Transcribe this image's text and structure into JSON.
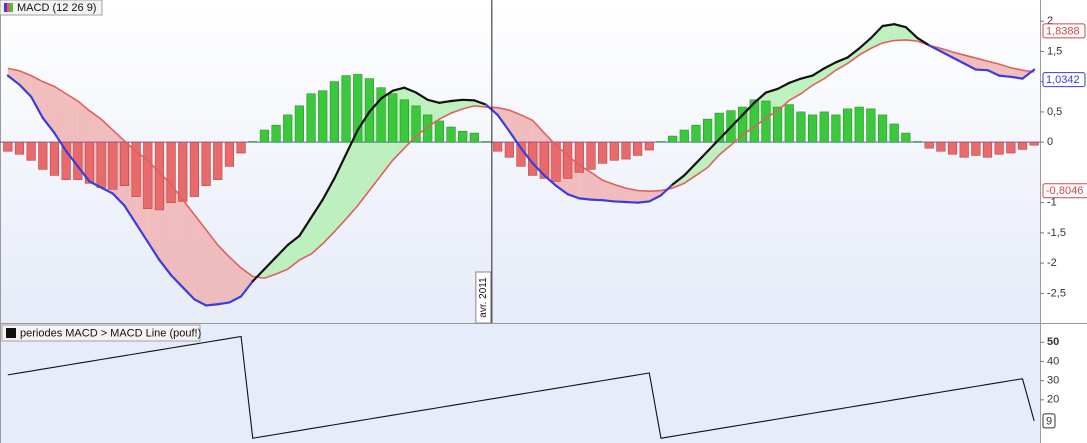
{
  "chart_data": [
    {
      "type": "macd",
      "title": "MACD (12 26 9)",
      "categories": [
        null,
        null,
        null,
        null,
        null,
        null,
        null,
        null,
        null,
        null,
        null,
        null,
        null,
        null,
        null,
        null,
        null,
        null,
        null,
        null,
        null,
        null,
        null,
        null,
        null,
        null,
        null,
        null,
        null,
        null,
        null,
        null,
        null,
        null,
        null,
        null,
        null,
        null,
        null,
        null,
        null,
        null,
        "avr. 2011",
        null,
        null,
        null,
        null,
        null,
        null,
        null,
        null,
        null,
        null,
        null,
        null,
        null,
        null,
        null,
        null,
        null,
        null,
        null,
        null,
        null,
        null,
        null,
        null,
        null,
        null,
        null,
        null,
        null,
        null,
        null,
        null,
        null,
        null,
        null,
        null,
        null,
        null,
        null,
        null,
        null,
        null,
        null,
        null,
        null,
        null
      ],
      "histogram": {
        "color_up": "#3cc83c",
        "color_down": "#e86a6a",
        "values": [
          -0.15,
          -0.2,
          -0.3,
          -0.45,
          -0.55,
          -0.62,
          -0.62,
          -0.68,
          -0.75,
          -0.78,
          -0.72,
          -0.9,
          -1.1,
          -1.12,
          -1.0,
          -0.98,
          -0.9,
          -0.72,
          -0.62,
          -0.4,
          -0.18,
          0.01,
          0.2,
          0.28,
          0.45,
          0.6,
          0.8,
          0.85,
          1.0,
          1.1,
          1.12,
          1.05,
          0.9,
          0.8,
          0.7,
          0.6,
          0.45,
          0.35,
          0.25,
          0.18,
          0.15,
          0.01,
          -0.15,
          -0.25,
          -0.4,
          -0.55,
          -0.6,
          -0.65,
          -0.6,
          -0.5,
          -0.45,
          -0.35,
          -0.3,
          -0.28,
          -0.22,
          -0.13,
          0.01,
          0.1,
          0.2,
          0.28,
          0.38,
          0.48,
          0.52,
          0.58,
          0.7,
          0.68,
          0.58,
          0.62,
          0.5,
          0.45,
          0.5,
          0.45,
          0.55,
          0.58,
          0.55,
          0.45,
          0.3,
          0.15,
          0.01,
          -0.1,
          -0.15,
          -0.2,
          -0.25,
          -0.22,
          -0.25,
          -0.2,
          -0.18,
          -0.12,
          -0.05
        ]
      },
      "macd": {
        "color": "#3c3cdc",
        "color_above": "#111111",
        "values": [
          1.1,
          0.95,
          0.75,
          0.4,
          0.15,
          -0.15,
          -0.4,
          -0.65,
          -0.75,
          -0.85,
          -1.05,
          -1.35,
          -1.65,
          -1.95,
          -2.2,
          -2.4,
          -2.6,
          -2.7,
          -2.68,
          -2.65,
          -2.55,
          -2.3,
          -2.1,
          -1.9,
          -1.7,
          -1.55,
          -1.25,
          -0.95,
          -0.6,
          -0.2,
          0.2,
          0.5,
          0.72,
          0.85,
          0.9,
          0.82,
          0.7,
          0.65,
          0.68,
          0.7,
          0.69,
          0.62,
          0.45,
          0.18,
          -0.1,
          -0.35,
          -0.55,
          -0.72,
          -0.86,
          -0.93,
          -0.95,
          -0.96,
          -0.98,
          -0.99,
          -1.0,
          -0.98,
          -0.88,
          -0.7,
          -0.55,
          -0.35,
          -0.15,
          0.05,
          0.25,
          0.45,
          0.65,
          0.82,
          0.88,
          0.98,
          1.05,
          1.1,
          1.22,
          1.32,
          1.4,
          1.55,
          1.72,
          1.92,
          1.95,
          1.9,
          1.72,
          1.6,
          1.5,
          1.4,
          1.3,
          1.2,
          1.19,
          1.1,
          1.08,
          1.05,
          1.2
        ]
      },
      "signal": {
        "color": "#e06060",
        "values": [
          1.22,
          1.18,
          1.1,
          1.0,
          0.92,
          0.8,
          0.68,
          0.52,
          0.38,
          0.2,
          0.02,
          -0.15,
          -0.3,
          -0.5,
          -0.7,
          -0.95,
          -1.2,
          -1.45,
          -1.7,
          -1.9,
          -2.08,
          -2.22,
          -2.25,
          -2.18,
          -2.1,
          -1.95,
          -1.85,
          -1.68,
          -1.48,
          -1.27,
          -1.05,
          -0.8,
          -0.55,
          -0.3,
          -0.1,
          0.1,
          0.25,
          0.38,
          0.48,
          0.55,
          0.6,
          0.58,
          0.57,
          0.53,
          0.45,
          0.36,
          0.15,
          -0.05,
          -0.22,
          -0.38,
          -0.5,
          -0.63,
          -0.7,
          -0.76,
          -0.8,
          -0.81,
          -0.8,
          -0.76,
          -0.68,
          -0.55,
          -0.42,
          -0.21,
          -0.05,
          0.12,
          0.25,
          0.4,
          0.52,
          0.69,
          0.8,
          0.94,
          1.05,
          1.19,
          1.3,
          1.44,
          1.55,
          1.64,
          1.68,
          1.69,
          1.67,
          1.6,
          1.55,
          1.49,
          1.44,
          1.39,
          1.34,
          1.29,
          1.23,
          1.19,
          1.16
        ]
      },
      "cloud_colors": {
        "above": "#b8efb8",
        "below": "#efb6b6"
      },
      "ylim": [
        -2.99,
        2.35
      ],
      "yticks": [
        2,
        {
          "value": 1.5,
          "label": "1,5"
        },
        1,
        {
          "value": 0.5,
          "label": "0,5"
        },
        0,
        -1,
        {
          "value": -1.5,
          "label": "-1,5"
        },
        -2,
        {
          "value": -2.5,
          "label": "-2,5"
        }
      ],
      "price_markers": [
        {
          "value": 1.8388,
          "label": "1,8388",
          "color": "#d04848"
        },
        {
          "value": 1.0342,
          "label": "1,0342",
          "color": "#3c3cdc"
        },
        {
          "value": -0.8046,
          "label": "-0,8046",
          "color": "#d04848"
        }
      ]
    },
    {
      "type": "line",
      "title": "periodes MACD > MACD Line (pouf!)",
      "color": "#111111",
      "values": [
        33,
        34,
        35,
        36,
        37,
        38,
        39,
        40,
        41,
        42,
        43,
        44,
        45,
        46,
        47,
        48,
        49,
        50,
        51,
        52,
        53,
        0,
        1,
        2,
        3,
        4,
        5,
        6,
        7,
        8,
        9,
        10,
        11,
        12,
        13,
        14,
        15,
        16,
        17,
        18,
        19,
        20,
        21,
        22,
        23,
        24,
        25,
        26,
        27,
        28,
        29,
        30,
        31,
        32,
        33,
        34,
        0,
        1,
        2,
        3,
        4,
        5,
        6,
        7,
        8,
        9,
        10,
        11,
        12,
        13,
        14,
        15,
        16,
        17,
        18,
        19,
        20,
        21,
        22,
        23,
        24,
        25,
        26,
        27,
        28,
        29,
        30,
        31,
        9
      ],
      "ylim": [
        -2.5,
        59.5
      ],
      "yticks": [
        20,
        30,
        40,
        50
      ],
      "price_markers": [
        {
          "value": 9,
          "label": "9",
          "color": "#333333"
        }
      ]
    }
  ]
}
